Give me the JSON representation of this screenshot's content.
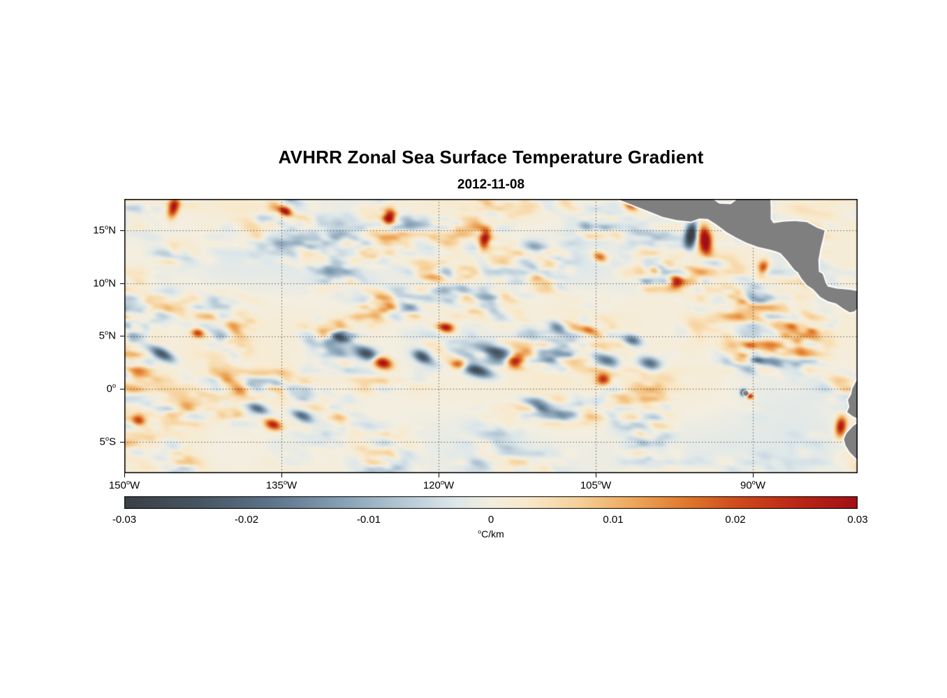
{
  "title": "AVHRR Zonal Sea Surface Temperature Gradient",
  "subtitle": "2012-11-08",
  "chart_data": {
    "type": "heatmap",
    "title": "AVHRR Zonal Sea Surface Temperature Gradient",
    "subtitle": "2012-11-08",
    "units": "°C/km",
    "deg": "o",
    "value_range": [
      -0.03,
      0.03
    ],
    "lon_range": [
      -150,
      -80
    ],
    "lat_range": [
      -8,
      18
    ],
    "background": "#ffffff",
    "land_color": "#7f7f7f",
    "coast_outline_color": "#ffffff",
    "x_axis": {
      "ticks": [
        {
          "num": "150",
          "dir": "W",
          "lon": -150
        },
        {
          "num": "135",
          "dir": "W",
          "lon": -135
        },
        {
          "num": "120",
          "dir": "W",
          "lon": -120
        },
        {
          "num": "105",
          "dir": "W",
          "lon": -105
        },
        {
          "num": "90",
          "dir": "W",
          "lon": -90
        }
      ]
    },
    "y_axis": {
      "ticks": [
        {
          "num": "15",
          "dir": "N",
          "lat": 15
        },
        {
          "num": "10",
          "dir": "N",
          "lat": 10
        },
        {
          "num": "5",
          "dir": "N",
          "lat": 5
        },
        {
          "num": "0",
          "dir": "",
          "lat": 0
        },
        {
          "num": "5",
          "dir": "S",
          "lat": -5
        }
      ]
    },
    "grid": {
      "lons": [
        -135,
        -120,
        -105,
        -90
      ],
      "lats": [
        15,
        10,
        5,
        0,
        -5
      ],
      "style": "dotted"
    },
    "colorbar": {
      "orientation": "horizontal",
      "ticks": [
        "-0.03",
        "-0.02",
        "-0.01",
        "0",
        "0.01",
        "0.02",
        "0.03"
      ],
      "tick_values": [
        -0.03,
        -0.02,
        -0.01,
        0,
        0.01,
        0.02,
        0.03
      ],
      "unit": "C/km"
    },
    "colormap": [
      [
        -0.03,
        "#3a4046"
      ],
      [
        -0.024,
        "#475561"
      ],
      [
        -0.018,
        "#5d7489"
      ],
      [
        -0.012,
        "#88a2b6"
      ],
      [
        -0.007,
        "#b8cad6"
      ],
      [
        -0.003,
        "#dde7ea"
      ],
      [
        0.0,
        "#f3eee0"
      ],
      [
        0.003,
        "#f8e9cc"
      ],
      [
        0.007,
        "#f6d29c"
      ],
      [
        0.012,
        "#eda458"
      ],
      [
        0.016,
        "#e0792e"
      ],
      [
        0.02,
        "#d04d1d"
      ],
      [
        0.025,
        "#bc2717"
      ],
      [
        0.03,
        "#a21016"
      ]
    ],
    "noise": {
      "seeds": [
        11,
        23,
        37,
        53
      ],
      "amp": 0.024,
      "tint": 0.003
    },
    "activity": {
      "base": 0.6,
      "bands": [
        {
          "c": 3.5,
          "w": 5.5,
          "a": 0.75
        },
        {
          "c": 14,
          "w": 4,
          "a": 0.35
        }
      ]
    },
    "features": {
      "blob_format": [
        "lon",
        "lat",
        "rx_deg",
        "ry_deg",
        "rot_deg",
        "value"
      ],
      "blobs": [
        [
          -95.9,
          14.6,
          0.55,
          1.15,
          -10,
          -0.036
        ],
        [
          -94.55,
          14.05,
          0.6,
          1.25,
          8,
          0.038
        ],
        [
          -125.4,
          2.5,
          0.95,
          0.55,
          -18,
          0.035
        ],
        [
          -126.8,
          3.3,
          1.3,
          0.6,
          -22,
          -0.027
        ],
        [
          -112.8,
          2.6,
          0.85,
          0.6,
          -12,
          0.035
        ],
        [
          -114.3,
          3.3,
          1.6,
          0.7,
          -22,
          -0.027
        ],
        [
          -119.3,
          5.8,
          0.75,
          0.45,
          -8,
          0.027
        ],
        [
          -116.3,
          1.7,
          1.5,
          0.55,
          -15,
          -0.025
        ],
        [
          -110.2,
          -1.7,
          1.8,
          0.5,
          -18,
          -0.021
        ],
        [
          -104.3,
          0.9,
          0.7,
          0.5,
          -5,
          0.026
        ],
        [
          -103.8,
          2.7,
          1.2,
          0.6,
          -18,
          -0.022
        ],
        [
          -99.8,
          2.4,
          1.1,
          0.6,
          -14,
          -0.02
        ],
        [
          -145.3,
          17.2,
          0.5,
          1.0,
          -15,
          0.028
        ],
        [
          -124.7,
          16.2,
          0.55,
          0.8,
          -10,
          0.028
        ],
        [
          -115.6,
          14.2,
          0.5,
          0.95,
          -12,
          0.027
        ],
        [
          -146.4,
          3.3,
          1.3,
          0.5,
          -28,
          -0.025
        ],
        [
          -135.8,
          -3.4,
          0.85,
          0.5,
          -18,
          0.027
        ],
        [
          -133.0,
          -2.6,
          1.05,
          0.5,
          -24,
          -0.022
        ],
        [
          -97.3,
          10.1,
          0.6,
          0.5,
          -5,
          0.027
        ],
        [
          -89.0,
          11.5,
          0.5,
          0.7,
          -18,
          0.022
        ],
        [
          -81.6,
          -3.6,
          0.5,
          0.95,
          -8,
          0.029
        ],
        [
          -90.9,
          -0.35,
          0.28,
          0.3,
          0,
          -0.031
        ],
        [
          -90.25,
          -0.7,
          0.3,
          0.26,
          0,
          0.029
        ],
        [
          -134.6,
          16.8,
          0.6,
          0.4,
          -22,
          0.023
        ],
        [
          -129.6,
          4.9,
          0.95,
          0.45,
          -15,
          -0.021
        ],
        [
          -143.0,
          5.3,
          0.6,
          0.4,
          -5,
          0.019
        ],
        [
          -148.6,
          -3.0,
          0.7,
          0.5,
          -18,
          0.021
        ],
        [
          -137.2,
          -1.9,
          1.0,
          0.45,
          -15,
          -0.019
        ],
        [
          -108.6,
          5.8,
          0.85,
          0.5,
          -20,
          -0.02
        ],
        [
          -105.7,
          5.6,
          0.7,
          0.4,
          -10,
          0.021
        ],
        [
          -101.5,
          4.6,
          0.9,
          0.5,
          -15,
          -0.02
        ],
        [
          -101.6,
          17.3,
          0.8,
          0.45,
          -18,
          0.022
        ],
        [
          -104.6,
          12.5,
          0.7,
          0.45,
          -22,
          0.02
        ],
        [
          -99.4,
          11.2,
          0.6,
          0.4,
          -22,
          0.02
        ],
        [
          -121.6,
          3.1,
          0.9,
          0.5,
          -20,
          -0.024
        ],
        [
          -118.0,
          2.3,
          0.8,
          0.5,
          -15,
          0.02
        ]
      ],
      "land_masses": [
        {
          "name": "central-america",
          "points": [
            [
              -103.2,
              18.6
            ],
            [
              -102.7,
              17.9
            ],
            [
              -101.3,
              17.35
            ],
            [
              -100.1,
              16.9
            ],
            [
              -98.6,
              16.3
            ],
            [
              -97.3,
              16.0
            ],
            [
              -95.9,
              15.85
            ],
            [
              -95.1,
              16.15
            ],
            [
              -94.3,
              16.1
            ],
            [
              -93.5,
              15.6
            ],
            [
              -92.5,
              14.85
            ],
            [
              -91.6,
              14.35
            ],
            [
              -90.6,
              13.85
            ],
            [
              -89.5,
              13.45
            ],
            [
              -88.4,
              13.2
            ],
            [
              -87.85,
              13.05
            ],
            [
              -87.35,
              12.85
            ],
            [
              -86.7,
              12.15
            ],
            [
              -86.0,
              11.25
            ],
            [
              -85.7,
              11.05
            ],
            [
              -85.35,
              10.45
            ],
            [
              -85.05,
              10.1
            ],
            [
              -84.85,
              9.85
            ],
            [
              -84.25,
              9.45
            ],
            [
              -83.55,
              8.7
            ],
            [
              -82.85,
              8.3
            ],
            [
              -82.05,
              8.1
            ],
            [
              -81.35,
              7.6
            ],
            [
              -80.75,
              7.25
            ],
            [
              -80.3,
              7.35
            ],
            [
              -79.95,
              7.7
            ],
            [
              -79.6,
              8.1
            ],
            [
              -79.4,
              8.9
            ],
            [
              -79.9,
              9.25
            ],
            [
              -80.8,
              9.4
            ],
            [
              -82.0,
              9.5
            ],
            [
              -82.85,
              9.7
            ],
            [
              -83.05,
              10.05
            ],
            [
              -83.35,
              10.9
            ],
            [
              -83.7,
              11.1
            ],
            [
              -83.75,
              12.2
            ],
            [
              -83.55,
              13.3
            ],
            [
              -83.3,
              14.3
            ],
            [
              -83.15,
              15.0
            ],
            [
              -83.85,
              15.25
            ],
            [
              -84.85,
              15.8
            ],
            [
              -85.95,
              15.9
            ],
            [
              -87.05,
              15.85
            ],
            [
              -88.05,
              15.7
            ],
            [
              -88.3,
              16.1
            ],
            [
              -88.3,
              17.2
            ],
            [
              -88.35,
              18.5
            ],
            [
              -89.3,
              18.8
            ],
            [
              -90.4,
              19.0
            ],
            [
              -90.85,
              18.6
            ],
            [
              -91.25,
              18.15
            ],
            [
              -92.1,
              17.5
            ],
            [
              -93.2,
              17.55
            ],
            [
              -94.0,
              18.1
            ],
            [
              -94.55,
              18.55
            ],
            [
              -95.6,
              18.9
            ],
            [
              -97.5,
              19.6
            ],
            [
              -100.0,
              19.6
            ],
            [
              -102.5,
              19.2
            ]
          ]
        },
        {
          "name": "south-america",
          "points": [
            [
              -78.8,
              2.2
            ],
            [
              -79.6,
              1.5
            ],
            [
              -80.0,
              0.95
            ],
            [
              -80.25,
              0.5
            ],
            [
              -80.5,
              0.02
            ],
            [
              -80.62,
              -0.55
            ],
            [
              -80.92,
              -1.05
            ],
            [
              -80.78,
              -1.7
            ],
            [
              -81.0,
              -2.2
            ],
            [
              -80.45,
              -2.6
            ],
            [
              -80.0,
              -2.8
            ],
            [
              -79.85,
              -3.15
            ],
            [
              -80.4,
              -3.5
            ],
            [
              -81.05,
              -4.2
            ],
            [
              -81.3,
              -4.75
            ],
            [
              -81.15,
              -5.35
            ],
            [
              -80.75,
              -6.0
            ],
            [
              -80.1,
              -6.65
            ],
            [
              -79.55,
              -7.25
            ],
            [
              -79.05,
              -7.95
            ],
            [
              -78.6,
              -8.6
            ],
            [
              -77.0,
              -9.0
            ],
            [
              -77.0,
              2.0
            ]
          ]
        },
        {
          "name": "galapagos",
          "points": [
            [
              -90.95,
              -0.3
            ],
            [
              -90.6,
              -0.15
            ],
            [
              -90.35,
              -0.45
            ],
            [
              -90.65,
              -0.7
            ],
            [
              -90.9,
              -0.55
            ]
          ]
        }
      ]
    }
  }
}
